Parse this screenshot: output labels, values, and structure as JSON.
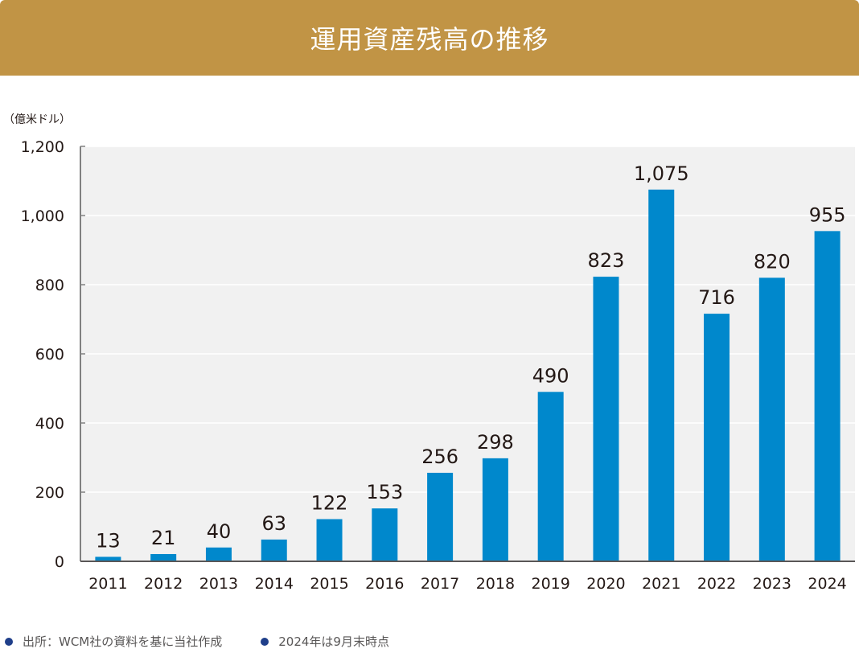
{
  "header": {
    "title": "運用資産残高の推移"
  },
  "footnotes": [
    {
      "text": "出所：WCM社の資料を基に当社作成"
    },
    {
      "text": "2024年は9月末時点"
    }
  ],
  "colors": {
    "header": "#c19445",
    "bar": "#0088cc",
    "plot_bg": "#f1f1f1",
    "bullet": "#1f3f8a"
  },
  "chart_data": {
    "type": "bar",
    "title": "運用資産残高の推移",
    "ylabel": "（億米ドル）",
    "xlabel": "",
    "categories": [
      "2011",
      "2012",
      "2013",
      "2014",
      "2015",
      "2016",
      "2017",
      "2018",
      "2019",
      "2020",
      "2021",
      "2022",
      "2023",
      "2024"
    ],
    "values": [
      13,
      21,
      40,
      63,
      122,
      153,
      256,
      298,
      490,
      823,
      1075,
      716,
      820,
      955
    ],
    "value_labels": [
      "13",
      "21",
      "40",
      "63",
      "122",
      "153",
      "256",
      "298",
      "490",
      "823",
      "1,075",
      "716",
      "820",
      "955"
    ],
    "ylim": [
      0,
      1200
    ],
    "yticks": [
      0,
      200,
      400,
      600,
      800,
      1000,
      1200
    ],
    "ytick_labels": [
      "0",
      "200",
      "400",
      "600",
      "800",
      "1,000",
      "1,200"
    ],
    "grid": true
  }
}
